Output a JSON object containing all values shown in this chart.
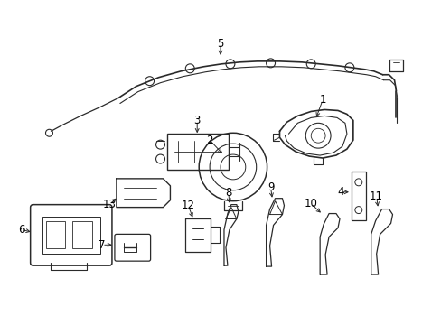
{
  "bg_color": "#ffffff",
  "line_color": "#2a2a2a",
  "fig_width": 4.89,
  "fig_height": 3.6,
  "dpi": 100
}
